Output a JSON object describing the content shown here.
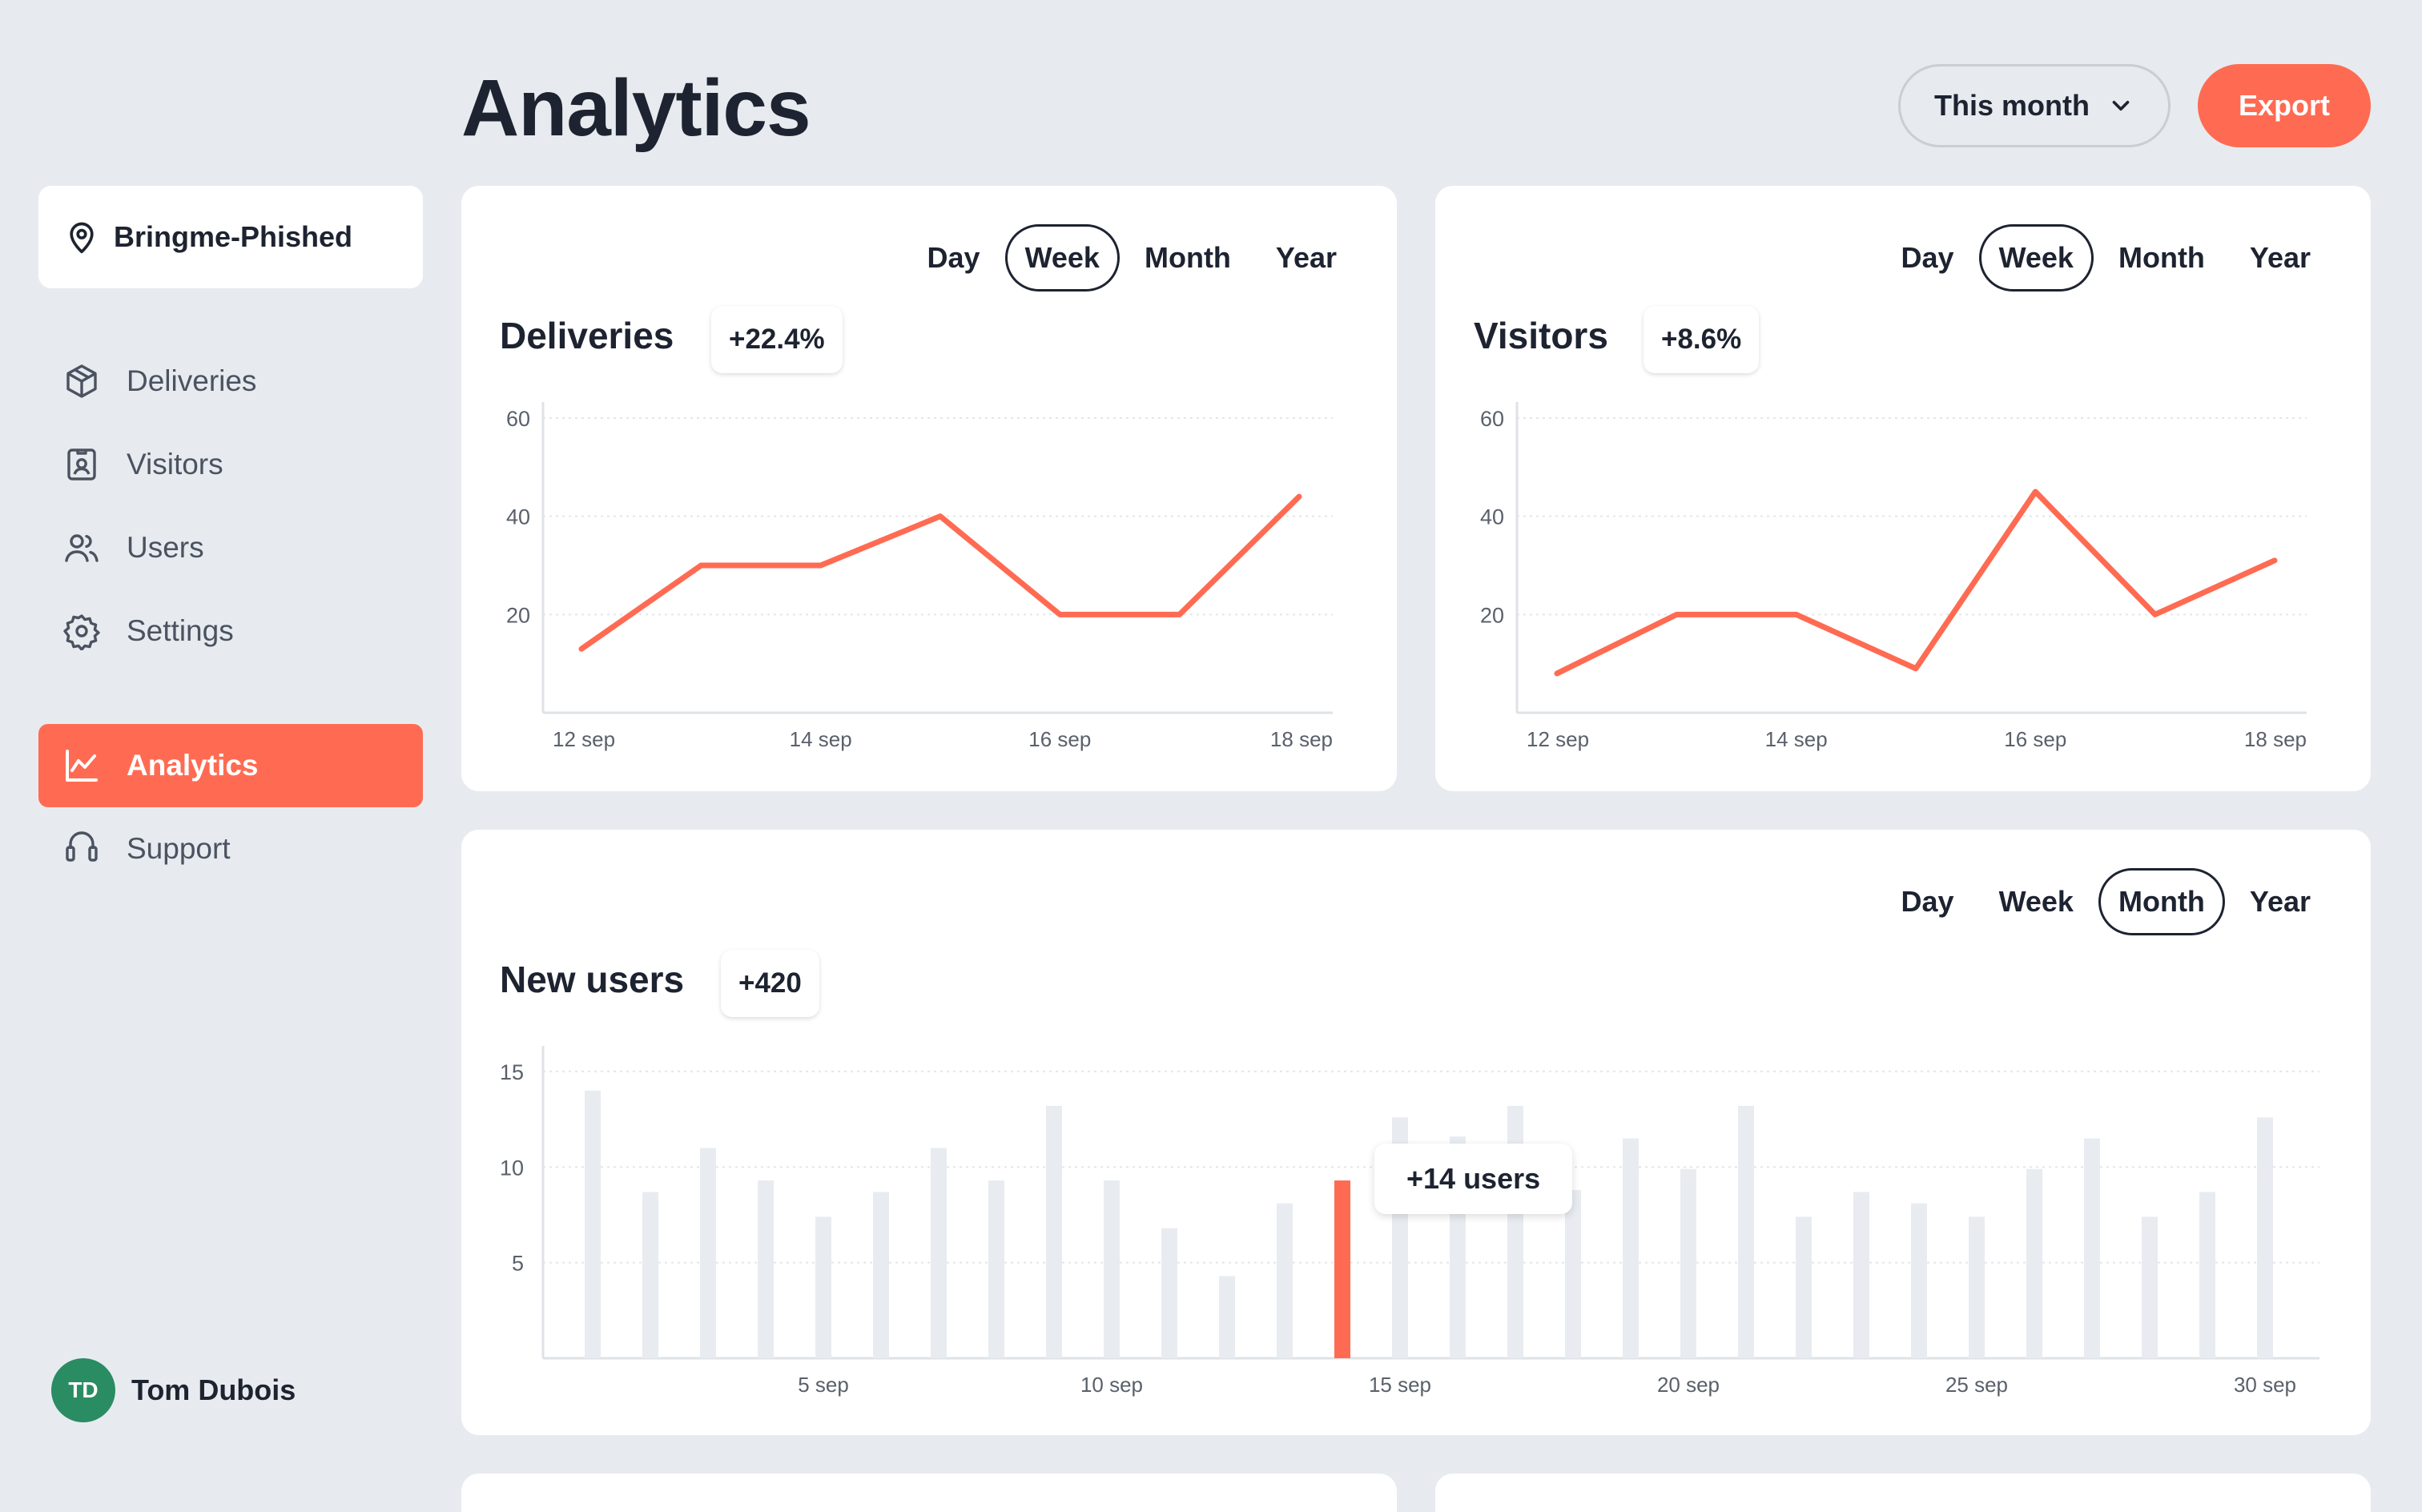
{
  "page": {
    "title": "Analytics"
  },
  "header": {
    "range_label": "This month",
    "export_label": "Export"
  },
  "sidebar": {
    "location": "Bringme-Phished",
    "items": [
      {
        "label": "Deliveries",
        "icon": "package-icon"
      },
      {
        "label": "Visitors",
        "icon": "visitor-badge-icon"
      },
      {
        "label": "Users",
        "icon": "users-icon"
      },
      {
        "label": "Settings",
        "icon": "gear-icon"
      },
      {
        "label": "Analytics",
        "icon": "chart-icon",
        "active": true
      },
      {
        "label": "Support",
        "icon": "headset-icon"
      }
    ],
    "user": {
      "initials": "TD",
      "name": "Tom Dubois"
    }
  },
  "tabs": [
    "Day",
    "Week",
    "Month",
    "Year"
  ],
  "cards": {
    "deliveries": {
      "title": "Deliveries",
      "badge": "+22.4%",
      "selected_tab": "Week"
    },
    "visitors": {
      "title": "Visitors",
      "badge": "+8.6%",
      "selected_tab": "Week"
    },
    "new_users": {
      "title": "New users",
      "badge": "+420",
      "selected_tab": "Month",
      "tooltip": "+14 users"
    }
  },
  "colors": {
    "accent": "#ff6b52",
    "bar": "#e8ecf0",
    "text": "#1d2330",
    "avatar": "#2a8c62"
  },
  "chart_data": [
    {
      "type": "line",
      "x": [
        "12 sep",
        "13 sep",
        "14 sep",
        "15 sep",
        "16 sep",
        "17 sep",
        "18 sep"
      ],
      "x_tick_labels": [
        "12 sep",
        "14 sep",
        "16 sep",
        "18 sep"
      ],
      "series": [
        {
          "values": [
            13,
            30,
            30,
            40,
            20,
            20,
            44
          ]
        }
      ],
      "yticks": [
        20,
        40,
        60
      ],
      "ylim": [
        0,
        60
      ],
      "color": "#ff6b52"
    },
    {
      "type": "line",
      "x": [
        "12 sep",
        "13 sep",
        "14 sep",
        "15 sep",
        "16 sep",
        "17 sep",
        "18 sep"
      ],
      "x_tick_labels": [
        "12 sep",
        "14 sep",
        "16 sep",
        "18 sep"
      ],
      "series": [
        {
          "values": [
            8,
            20,
            20,
            9,
            45,
            20,
            31
          ]
        }
      ],
      "yticks": [
        20,
        40,
        60
      ],
      "ylim": [
        0,
        60
      ],
      "color": "#ff6b52"
    },
    {
      "type": "bar",
      "categories": [
        "1 sep",
        "2 sep",
        "3 sep",
        "4 sep",
        "5 sep",
        "6 sep",
        "7 sep",
        "8 sep",
        "9 sep",
        "10 sep",
        "11 sep",
        "12 sep",
        "13 sep",
        "14 sep",
        "15 sep",
        "16 sep",
        "17 sep",
        "18 sep",
        "19 sep",
        "20 sep",
        "21 sep",
        "22 sep",
        "23 sep",
        "24 sep",
        "25 sep",
        "26 sep",
        "27 sep",
        "28 sep",
        "29 sep",
        "30 sep"
      ],
      "values": [
        14,
        8.7,
        11,
        9.3,
        7.4,
        8.7,
        11,
        9.3,
        13.2,
        9.3,
        6.8,
        4.3,
        8.1,
        9.3,
        12.6,
        11.6,
        13.2,
        8.8,
        11.5,
        9.9,
        13.2,
        7.4,
        8.7,
        8.1,
        7.4,
        9.9,
        11.5,
        7.4,
        8.7,
        12.6
      ],
      "highlight_index": 13,
      "x_tick_labels": [
        "5 sep",
        "10 sep",
        "15 sep",
        "20 sep",
        "25 sep",
        "30 sep"
      ],
      "yticks": [
        5,
        10,
        15
      ],
      "ylim": [
        0,
        15.5
      ],
      "highlight_color": "#ff6b52",
      "bar_color": "#e8ecf0"
    }
  ]
}
